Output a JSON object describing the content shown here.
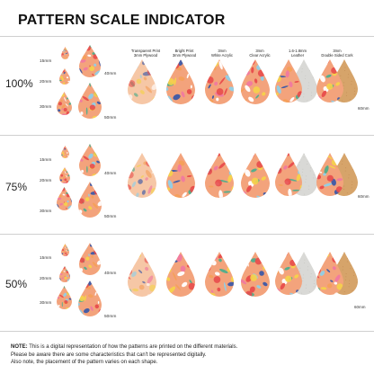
{
  "title": "PATTERN SCALE INDICATOR",
  "columns": [
    {
      "line1": "Transparent Print",
      "line2": "3mm Plywood"
    },
    {
      "line1": "Bright Print",
      "line2": "3mm Plywood"
    },
    {
      "line1": "3mm",
      "line2": "White Acrylic"
    },
    {
      "line1": "3mm",
      "line2": "Clear Acrylic"
    },
    {
      "line1": "1.6-1.8mm",
      "line2": "Leather"
    },
    {
      "line1": "3mm",
      "line2": "Double Sided Cork"
    }
  ],
  "scales": [
    {
      "label": "100%",
      "sizes": [
        "15mm",
        "20mm",
        "30mm",
        "40mm",
        "50mm"
      ],
      "side": "60mm"
    },
    {
      "label": "75%",
      "sizes": [
        "15mm",
        "20mm",
        "30mm",
        "40mm",
        "50mm"
      ],
      "side": "60mm"
    },
    {
      "label": "50%",
      "sizes": [
        "15mm",
        "20mm",
        "30mm",
        "40mm",
        "50mm"
      ],
      "side": "60mm"
    }
  ],
  "note": {
    "label": "NOTE:",
    "line1": "This is a digital representation of how the patterns are printed on the different materials.",
    "line2": "Please be aware there are some characteristics that can't be represented digitally.",
    "line3": "Also note, the placement of the pattern varies on each shape."
  },
  "colors": {
    "floral_pink": "#f07aa0",
    "floral_orange": "#f4a05a",
    "floral_yellow": "#f5d34a",
    "floral_blue": "#3d5aa8",
    "floral_green": "#4fae8c",
    "floral_red": "#e84c4c",
    "leather": "#d9d9d6",
    "cork": "#d6a46a"
  }
}
